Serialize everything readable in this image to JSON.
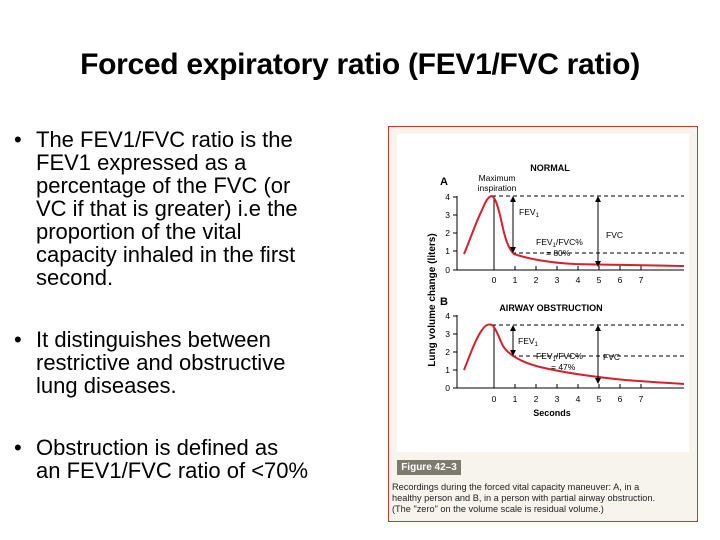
{
  "slide": {
    "title": "Forced expiratory ratio (FEV1/FVC ratio)",
    "bullets": [
      {
        "lines": [
          "The FEV1/FVC ratio is the",
          "FEV1 expressed as a",
          "percentage of the FVC (or",
          "VC if that is greater) i.e the",
          "proportion of the vital",
          "capacity inhaled in the first",
          "second."
        ]
      },
      {
        "lines": [
          "It distinguishes between",
          "restrictive and obstructive",
          "lung diseases."
        ]
      },
      {
        "lines": [
          "Obstruction is defined as",
          "an FEV1/FVC ratio of <70%"
        ]
      }
    ]
  },
  "figure": {
    "y_axis_label": "Lung volume change (liters)",
    "panel_a": {
      "letter": "A",
      "heading": "NORMAL",
      "max_label_line1": "Maximum",
      "max_label_line2": "inspiration",
      "fev1_label": "FEV",
      "fev1_sub": "1",
      "ratio_line1_pre": "FEV",
      "ratio_line1_sub": "1",
      "ratio_line1_post": "/FVC%",
      "ratio_line2": "= 80%",
      "fvc_label": "FVC"
    },
    "panel_b": {
      "letter": "B",
      "heading": "AIRWAY OBSTRUCTION",
      "fev1_label": "FEV",
      "fev1_sub": "1",
      "ratio_line1_pre": "FEV",
      "ratio_line1_sub": "1",
      "ratio_line1_post": "/FVC%",
      "ratio_line2": "= 47%",
      "fvc_label": "FVC"
    },
    "y_ticks": [
      "4",
      "3",
      "2",
      "1",
      "0"
    ],
    "x_ticks": [
      "0",
      "1",
      "2",
      "3",
      "4",
      "5",
      "6",
      "7"
    ],
    "x_axis_label": "Seconds",
    "figure_label": "Figure 42–3",
    "caption_lines": [
      "Recordings during the forced vital capacity maneuver: A, in a",
      "healthy person and B, in a person with partial airway obstruction.",
      "(The \"zero\" on the volume scale is residual volume.)"
    ],
    "curve_color": "#d62030"
  }
}
